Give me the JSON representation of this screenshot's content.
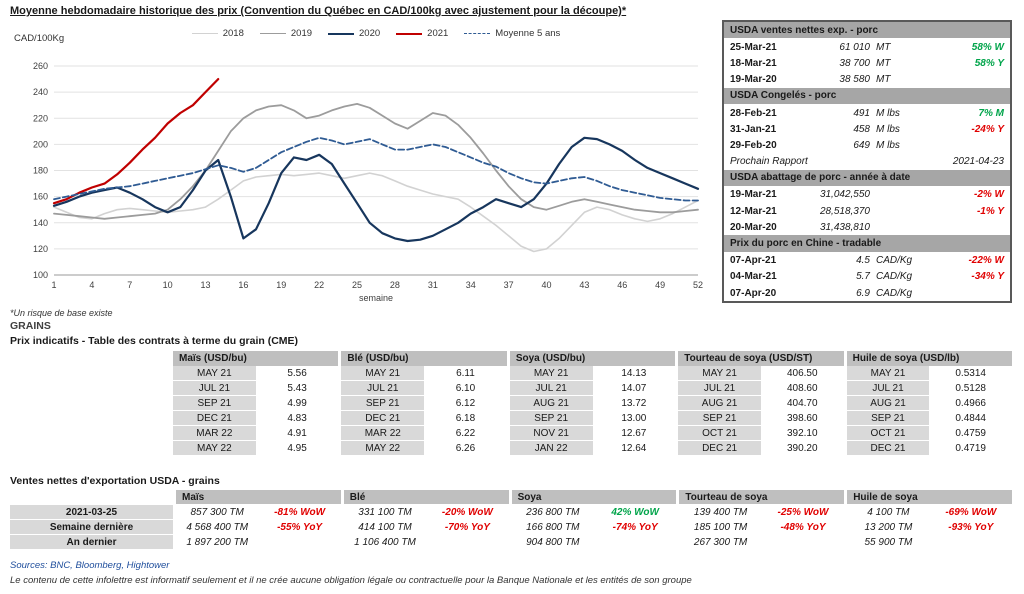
{
  "page": {
    "title": "Moyenne hebdomadaire historique des prix (Convention du Québec en CAD/100kg avec ajustement pour la découpe)*",
    "footnote": "*Un risque de base existe",
    "sources": "Sources: BNC, Bloomberg, Hightower",
    "disclaimer": "Le contenu de cette infolettre est informatif seulement et il ne crée aucune obligation légale ou contractuelle pour la Banque Nationale et les entités de son groupe"
  },
  "colors": {
    "positive": "#00a44a",
    "negative": "#e00000",
    "neutral": "#1a1a1a"
  },
  "chart_data": {
    "type": "line",
    "title": "Moyenne hebdomadaire historique des prix (Convention du Québec en CAD/100kg avec ajustement pour la découpe)*",
    "ylabel": "CAD/100Kg",
    "xlabel": "semaine",
    "ylim": [
      100,
      260
    ],
    "ytick_step": 20,
    "xticks": [
      1,
      4,
      7,
      10,
      13,
      16,
      19,
      22,
      25,
      28,
      31,
      34,
      37,
      40,
      43,
      46,
      49,
      52
    ],
    "legend_position": "top",
    "grid": "horizontal",
    "series": [
      {
        "name": "2018",
        "color": "#d2d2d2",
        "dash": "",
        "width": 1.6,
        "values": [
          152,
          148,
          144,
          143,
          147,
          150,
          151,
          150,
          149,
          148,
          149,
          150,
          152,
          158,
          165,
          172,
          175,
          176,
          177,
          176,
          177,
          178,
          176,
          174,
          176,
          178,
          176,
          172,
          168,
          165,
          162,
          160,
          158,
          152,
          145,
          138,
          130,
          122,
          118,
          120,
          128,
          138,
          148,
          152,
          150,
          146,
          143,
          141,
          143,
          147,
          152,
          157
        ]
      },
      {
        "name": "2019",
        "color": "#9c9c9c",
        "dash": "",
        "width": 1.8,
        "values": [
          147,
          146,
          145,
          144,
          143,
          144,
          145,
          146,
          147,
          150,
          158,
          168,
          180,
          195,
          210,
          220,
          226,
          229,
          230,
          226,
          220,
          222,
          226,
          229,
          231,
          228,
          222,
          216,
          212,
          218,
          224,
          222,
          215,
          205,
          193,
          180,
          168,
          158,
          152,
          150,
          153,
          156,
          158,
          156,
          154,
          152,
          150,
          149,
          148,
          148,
          149,
          150
        ]
      },
      {
        "name": "2020",
        "color": "#17365d",
        "dash": "",
        "width": 2.2,
        "values": [
          153,
          156,
          160,
          163,
          165,
          167,
          163,
          158,
          152,
          148,
          152,
          165,
          180,
          188,
          160,
          128,
          135,
          155,
          178,
          190,
          188,
          192,
          185,
          170,
          155,
          140,
          132,
          128,
          126,
          127,
          130,
          135,
          140,
          147,
          152,
          158,
          155,
          152,
          158,
          170,
          185,
          198,
          205,
          204,
          200,
          195,
          188,
          182,
          178,
          174,
          170,
          166
        ]
      },
      {
        "name": "2021",
        "color": "#c00000",
        "dash": "",
        "width": 2.2,
        "values": [
          155,
          158,
          163,
          167,
          170,
          177,
          186,
          196,
          205,
          216,
          224,
          230,
          240,
          250
        ]
      },
      {
        "name": "Moyenne 5 ans",
        "color": "#2f5b93",
        "dash": "6 3",
        "width": 1.8,
        "values": [
          158,
          160,
          162,
          164,
          166,
          167,
          168,
          170,
          172,
          174,
          176,
          178,
          181,
          184,
          182,
          179,
          182,
          188,
          194,
          198,
          202,
          205,
          203,
          200,
          202,
          204,
          200,
          196,
          196,
          198,
          200,
          198,
          194,
          190,
          186,
          183,
          178,
          174,
          171,
          170,
          172,
          174,
          175,
          172,
          168,
          165,
          163,
          161,
          159,
          158,
          157,
          157
        ]
      }
    ]
  },
  "usda_panel": {
    "rows": [
      {
        "type": "header",
        "text": "USDA ventes nettes exp. - porc"
      },
      {
        "type": "data",
        "date": "25-Mar-21",
        "value": "61 010",
        "unit": "MT",
        "change": "58% W",
        "dir": "up"
      },
      {
        "type": "data",
        "date": "18-Mar-21",
        "value": "38 700",
        "unit": "MT",
        "change": "58% Y",
        "dir": "up"
      },
      {
        "type": "data",
        "date": "19-Mar-20",
        "value": "38 580",
        "unit": "MT",
        "change": "",
        "dir": ""
      },
      {
        "type": "header",
        "text": "USDA Congelés - porc"
      },
      {
        "type": "data",
        "date": "28-Feb-21",
        "value": "491",
        "unit": "M lbs",
        "change": "7% M",
        "dir": "up"
      },
      {
        "type": "data",
        "date": "31-Jan-21",
        "value": "458",
        "unit": "M lbs",
        "change": "-24% Y",
        "dir": "down"
      },
      {
        "type": "data",
        "date": "29-Feb-20",
        "value": "649",
        "unit": "M lbs",
        "change": "",
        "dir": ""
      },
      {
        "type": "note",
        "label": "Prochain Rapport",
        "value": "2021-04-23"
      },
      {
        "type": "header",
        "text": "USDA abattage de porc - année à date"
      },
      {
        "type": "data",
        "date": "19-Mar-21",
        "value": "31,042,550",
        "unit": "",
        "change": "-2% W",
        "dir": "down"
      },
      {
        "type": "data",
        "date": "12-Mar-21",
        "value": "28,518,370",
        "unit": "",
        "change": "-1% Y",
        "dir": "down"
      },
      {
        "type": "data",
        "date": "20-Mar-20",
        "value": "31,438,810",
        "unit": "",
        "change": "",
        "dir": ""
      },
      {
        "type": "header",
        "text": "Prix du porc en Chine - tradable"
      },
      {
        "type": "data",
        "date": "07-Apr-21",
        "value": "4.5",
        "unit": "CAD/Kg",
        "change": "-22% W",
        "dir": "down"
      },
      {
        "type": "data",
        "date": "04-Mar-21",
        "value": "5.7",
        "unit": "CAD/Kg",
        "change": "-34% Y",
        "dir": "down"
      },
      {
        "type": "data",
        "date": "07-Apr-20",
        "value": "6.9",
        "unit": "CAD/Kg",
        "change": "",
        "dir": ""
      }
    ]
  },
  "grains": {
    "section_title": "GRAINS",
    "futures_title": "Prix indicatifs - Table des contrats à terme du grain (CME)",
    "futures": {
      "groups": [
        {
          "header": "Maïs (USD/bu)",
          "rows": [
            [
              "MAY 21",
              "5.56"
            ],
            [
              "JUL 21",
              "5.43"
            ],
            [
              "SEP 21",
              "4.99"
            ],
            [
              "DEC 21",
              "4.83"
            ],
            [
              "MAR 22",
              "4.91"
            ],
            [
              "MAY 22",
              "4.95"
            ]
          ]
        },
        {
          "header": "Blé (USD/bu)",
          "rows": [
            [
              "MAY 21",
              "6.11"
            ],
            [
              "JUL 21",
              "6.10"
            ],
            [
              "SEP 21",
              "6.12"
            ],
            [
              "DEC 21",
              "6.18"
            ],
            [
              "MAR 22",
              "6.22"
            ],
            [
              "MAY 22",
              "6.26"
            ]
          ]
        },
        {
          "header": "Soya (USD/bu)",
          "rows": [
            [
              "MAY 21",
              "14.13"
            ],
            [
              "JUL 21",
              "14.07"
            ],
            [
              "AUG 21",
              "13.72"
            ],
            [
              "SEP 21",
              "13.00"
            ],
            [
              "NOV 21",
              "12.67"
            ],
            [
              "JAN 22",
              "12.64"
            ]
          ]
        },
        {
          "header": "Tourteau de soya (USD/ST)",
          "rows": [
            [
              "MAY 21",
              "406.50"
            ],
            [
              "JUL 21",
              "408.60"
            ],
            [
              "AUG 21",
              "404.70"
            ],
            [
              "SEP 21",
              "398.60"
            ],
            [
              "OCT 21",
              "392.10"
            ],
            [
              "DEC 21",
              "390.20"
            ]
          ]
        },
        {
          "header": "Huile de soya (USD/lb)",
          "rows": [
            [
              "MAY 21",
              "0.5314"
            ],
            [
              "JUL 21",
              "0.5128"
            ],
            [
              "AUG 21",
              "0.4966"
            ],
            [
              "SEP 21",
              "0.4844"
            ],
            [
              "OCT 21",
              "0.4759"
            ],
            [
              "DEC 21",
              "0.4719"
            ]
          ]
        }
      ]
    },
    "exports_title": "Ventes nettes d'exportation USDA - grains",
    "exports": {
      "col_headers": [
        "Maïs",
        "Blé",
        "Soya",
        "Tourteau de soya",
        "Huile de soya"
      ],
      "rows": [
        {
          "label": "2021-03-25",
          "cells": [
            {
              "value": "857 300 TM",
              "change": "-81% WoW",
              "dir": "down"
            },
            {
              "value": "331 100 TM",
              "change": "-20% WoW",
              "dir": "down"
            },
            {
              "value": "236 800 TM",
              "change": "42% WoW",
              "dir": "up"
            },
            {
              "value": "139 400 TM",
              "change": "-25% WoW",
              "dir": "down"
            },
            {
              "value": "4 100 TM",
              "change": "-69% WoW",
              "dir": "down"
            }
          ]
        },
        {
          "label": "Semaine dernière",
          "cells": [
            {
              "value": "4 568 400 TM",
              "change": "-55% YoY",
              "dir": "down"
            },
            {
              "value": "414 100 TM",
              "change": "-70% YoY",
              "dir": "down"
            },
            {
              "value": "166 800 TM",
              "change": "-74% YoY",
              "dir": "down"
            },
            {
              "value": "185 100 TM",
              "change": "-48% YoY",
              "dir": "down"
            },
            {
              "value": "13 200 TM",
              "change": "-93% YoY",
              "dir": "down"
            }
          ]
        },
        {
          "label": "An dernier",
          "cells": [
            {
              "value": "1 897 200 TM",
              "change": "",
              "dir": ""
            },
            {
              "value": "1 106 400 TM",
              "change": "",
              "dir": ""
            },
            {
              "value": "904 800 TM",
              "change": "",
              "dir": ""
            },
            {
              "value": "267 300 TM",
              "change": "",
              "dir": ""
            },
            {
              "value": "55 900 TM",
              "change": "",
              "dir": ""
            }
          ]
        }
      ]
    }
  }
}
